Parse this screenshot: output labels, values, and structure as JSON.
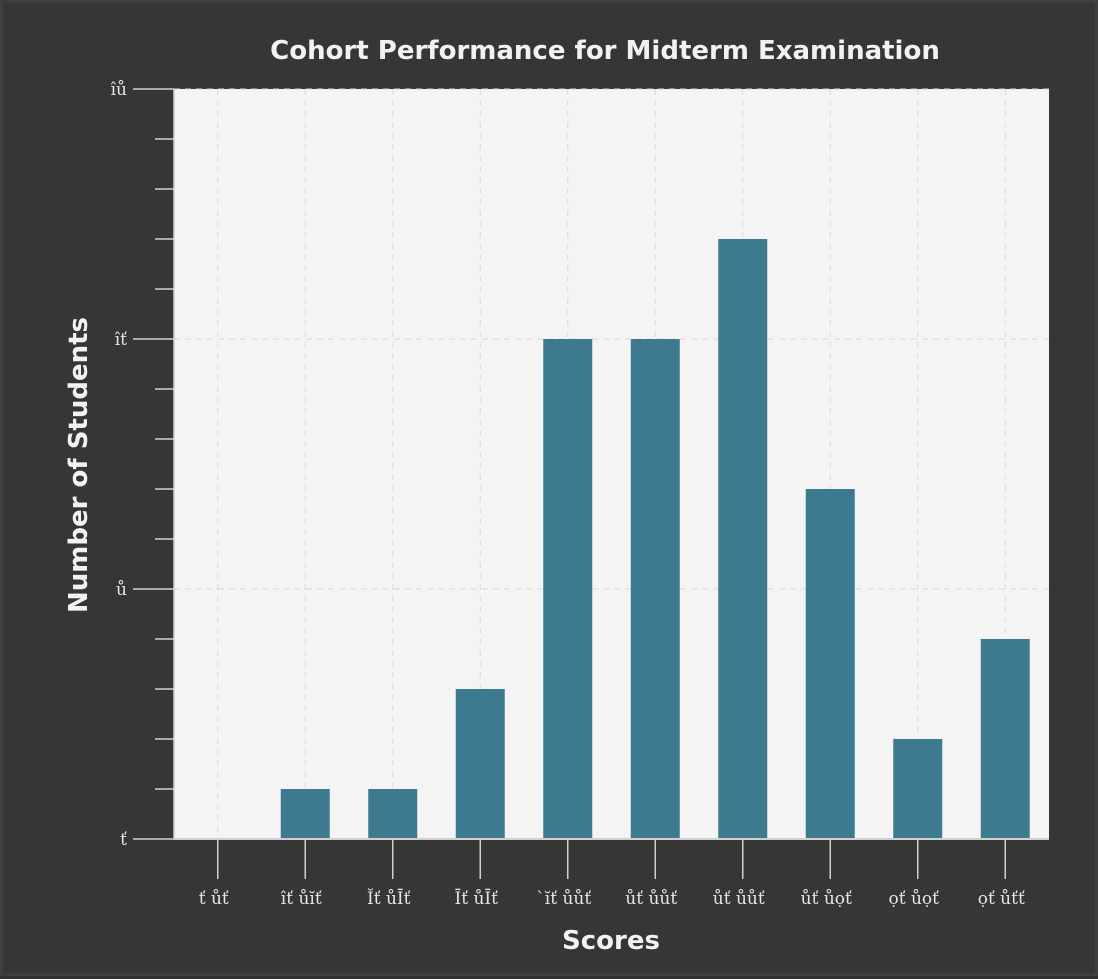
{
  "chart_data": {
    "type": "bar",
    "title": "Cohort Performance for Midterm Examination",
    "xlabel": "Scores",
    "ylabel": "Number of Students",
    "categories": [
      "ť ůť",
      "îť ůĭť",
      "Ĭť ůĪť",
      "Īť ůĪť",
      "ˋĭť ůůť",
      "ůť ůůť",
      "ůť ůůť",
      "ůť ůọť",
      "ọť ůọť",
      "ọť ůťť"
    ],
    "values": [
      0,
      1,
      1,
      3,
      10,
      10,
      12,
      7,
      2,
      4
    ],
    "ylim": [
      0,
      15
    ],
    "ytick_labels": [
      {
        "value": 0,
        "label": "ť"
      },
      {
        "value": 5,
        "label": "ů"
      },
      {
        "value": 10,
        "label": "îť"
      },
      {
        "value": 15,
        "label": "îů"
      }
    ],
    "y_minor_step": 1,
    "grid": true,
    "colors": {
      "bar": "#3e7a8f",
      "plot_background": "#f4f4f4",
      "page_background": "#363636",
      "grid": "#d9d9d9",
      "axis": "#d0d0d0",
      "text": "#f2f2f2"
    }
  }
}
